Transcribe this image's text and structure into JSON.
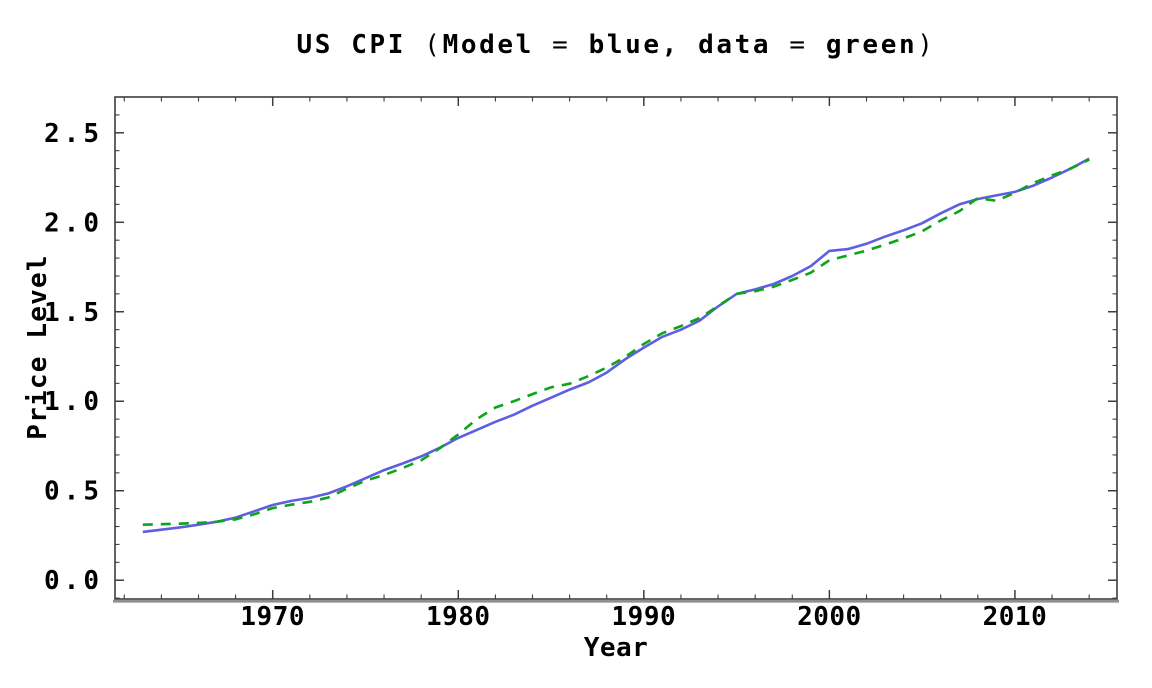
{
  "header": {
    "title": "US CPI (Model = blue, data = green)",
    "title_segments": [
      {
        "text": "US CPI ",
        "bold": true
      },
      {
        "text": "(",
        "bold": false
      },
      {
        "text": "Model ",
        "bold": true
      },
      {
        "text": "= ",
        "bold": false
      },
      {
        "text": "blue, data ",
        "bold": true
      },
      {
        "text": "= ",
        "bold": false
      },
      {
        "text": "green",
        "bold": true
      },
      {
        "text": ")",
        "bold": false
      }
    ]
  },
  "colors": {
    "model_blue": "#5e5ee0",
    "data_green": "#0aa519",
    "frame": "#3d3d3d",
    "axis_baseline": "#8f8f8f",
    "text": "#000000",
    "background": "#ffffff"
  },
  "chart_data": {
    "type": "line",
    "title": "US CPI (Model = blue, data = green)",
    "xlabel": "Year",
    "ylabel": "Price Level",
    "grid": false,
    "frame": true,
    "legend_position": "encoded-in-title",
    "xlim": [
      1961.5,
      2015.5
    ],
    "ylim": [
      -0.105,
      2.7
    ],
    "x_major_ticks": [
      1970,
      1980,
      1990,
      2000,
      2010
    ],
    "x_major_tick_labels": [
      "1970",
      "1980",
      "1990",
      "2000",
      "2010"
    ],
    "x_minor_ticks": [
      1962,
      1964,
      1966,
      1968,
      1972,
      1974,
      1976,
      1978,
      1982,
      1984,
      1986,
      1988,
      1992,
      1994,
      1996,
      1998,
      2002,
      2004,
      2006,
      2008,
      2012,
      2014
    ],
    "y_major_ticks": [
      0.0,
      0.5,
      1.0,
      1.5,
      2.0,
      2.5
    ],
    "y_major_tick_labels": [
      "0.0",
      "0.5",
      "1.0",
      "1.5",
      "2.0",
      "2.5"
    ],
    "y_minor_ticks": [
      -0.1,
      0.1,
      0.2,
      0.3,
      0.4,
      0.6,
      0.7,
      0.8,
      0.9,
      1.1,
      1.2,
      1.3,
      1.4,
      1.6,
      1.7,
      1.8,
      1.9,
      2.1,
      2.2,
      2.3,
      2.4,
      2.6
    ],
    "x": [
      1963,
      1964,
      1965,
      1966,
      1967,
      1968,
      1969,
      1970,
      1971,
      1972,
      1973,
      1974,
      1975,
      1976,
      1977,
      1978,
      1979,
      1980,
      1981,
      1982,
      1983,
      1984,
      1985,
      1986,
      1987,
      1988,
      1989,
      1990,
      1991,
      1992,
      1993,
      1994,
      1995,
      1996,
      1997,
      1998,
      1999,
      2000,
      2001,
      2002,
      2003,
      2004,
      2005,
      2006,
      2007,
      2008,
      2009,
      2010,
      2011,
      2012,
      2013,
      2014
    ],
    "series": [
      {
        "name": "Model",
        "color": "#5e5ee0",
        "style": "solid",
        "values": [
          0.27,
          0.282,
          0.295,
          0.31,
          0.327,
          0.35,
          0.385,
          0.42,
          0.443,
          0.46,
          0.485,
          0.525,
          0.57,
          0.615,
          0.652,
          0.692,
          0.74,
          0.795,
          0.84,
          0.885,
          0.925,
          0.975,
          1.02,
          1.065,
          1.105,
          1.16,
          1.235,
          1.3,
          1.36,
          1.4,
          1.45,
          1.53,
          1.6,
          1.625,
          1.655,
          1.7,
          1.755,
          1.84,
          1.85,
          1.88,
          1.92,
          1.955,
          1.995,
          2.05,
          2.1,
          2.13,
          2.15,
          2.17,
          2.205,
          2.25,
          2.3,
          2.355
        ]
      },
      {
        "name": "data",
        "color": "#0aa519",
        "style": "dashed",
        "values": [
          0.31,
          0.313,
          0.316,
          0.32,
          0.327,
          0.34,
          0.368,
          0.403,
          0.422,
          0.438,
          0.462,
          0.512,
          0.556,
          0.588,
          0.627,
          0.67,
          0.737,
          0.815,
          0.9,
          0.965,
          1.0,
          1.04,
          1.078,
          1.098,
          1.14,
          1.188,
          1.248,
          1.32,
          1.38,
          1.42,
          1.465,
          1.532,
          1.6,
          1.615,
          1.64,
          1.678,
          1.718,
          1.788,
          1.815,
          1.842,
          1.875,
          1.91,
          1.95,
          2.01,
          2.062,
          2.135,
          2.12,
          2.165,
          2.22,
          2.262,
          2.3,
          2.35
        ]
      }
    ]
  }
}
